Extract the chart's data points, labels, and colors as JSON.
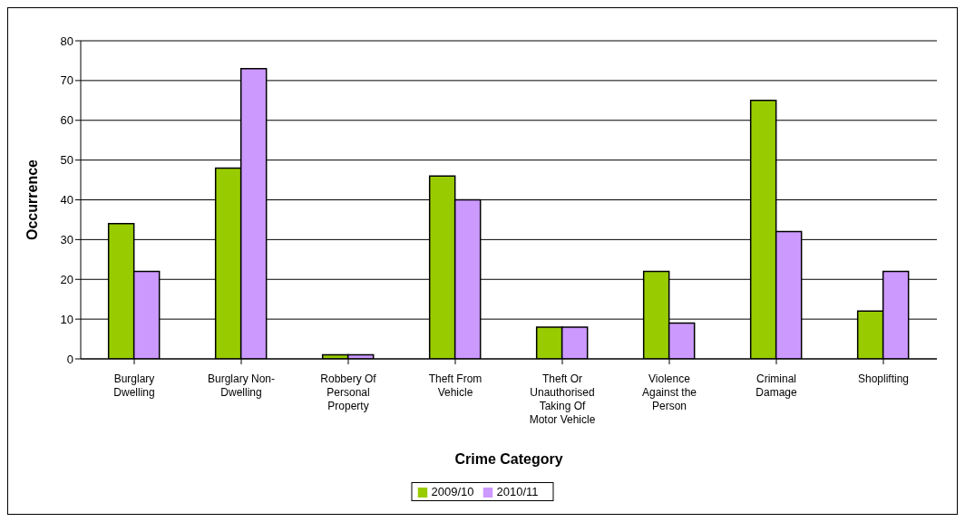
{
  "chart_data": {
    "type": "bar",
    "xlabel": "Crime Category",
    "ylabel": "Occurrence",
    "categories": [
      "Burglary Dwelling",
      "Burglary Non-Dwelling",
      "Robbery Of Personal Property",
      "Theft From Vehicle",
      "Theft Or Unauthorised Taking Of Motor Vehicle",
      "Violence Against the Person",
      "Criminal Damage",
      "Shoplifting"
    ],
    "series": [
      {
        "name": "2009/10",
        "color": "#99cc00",
        "values": [
          34,
          48,
          1,
          46,
          8,
          22,
          65,
          12
        ]
      },
      {
        "name": "2010/11",
        "color": "#cc99ff",
        "values": [
          22,
          73,
          1,
          40,
          8,
          9,
          32,
          22
        ]
      }
    ],
    "ylim": [
      0,
      80
    ],
    "yticks": [
      0,
      10,
      20,
      30,
      40,
      50,
      60,
      70,
      80
    ],
    "grid": "y",
    "legend": "bottom"
  }
}
